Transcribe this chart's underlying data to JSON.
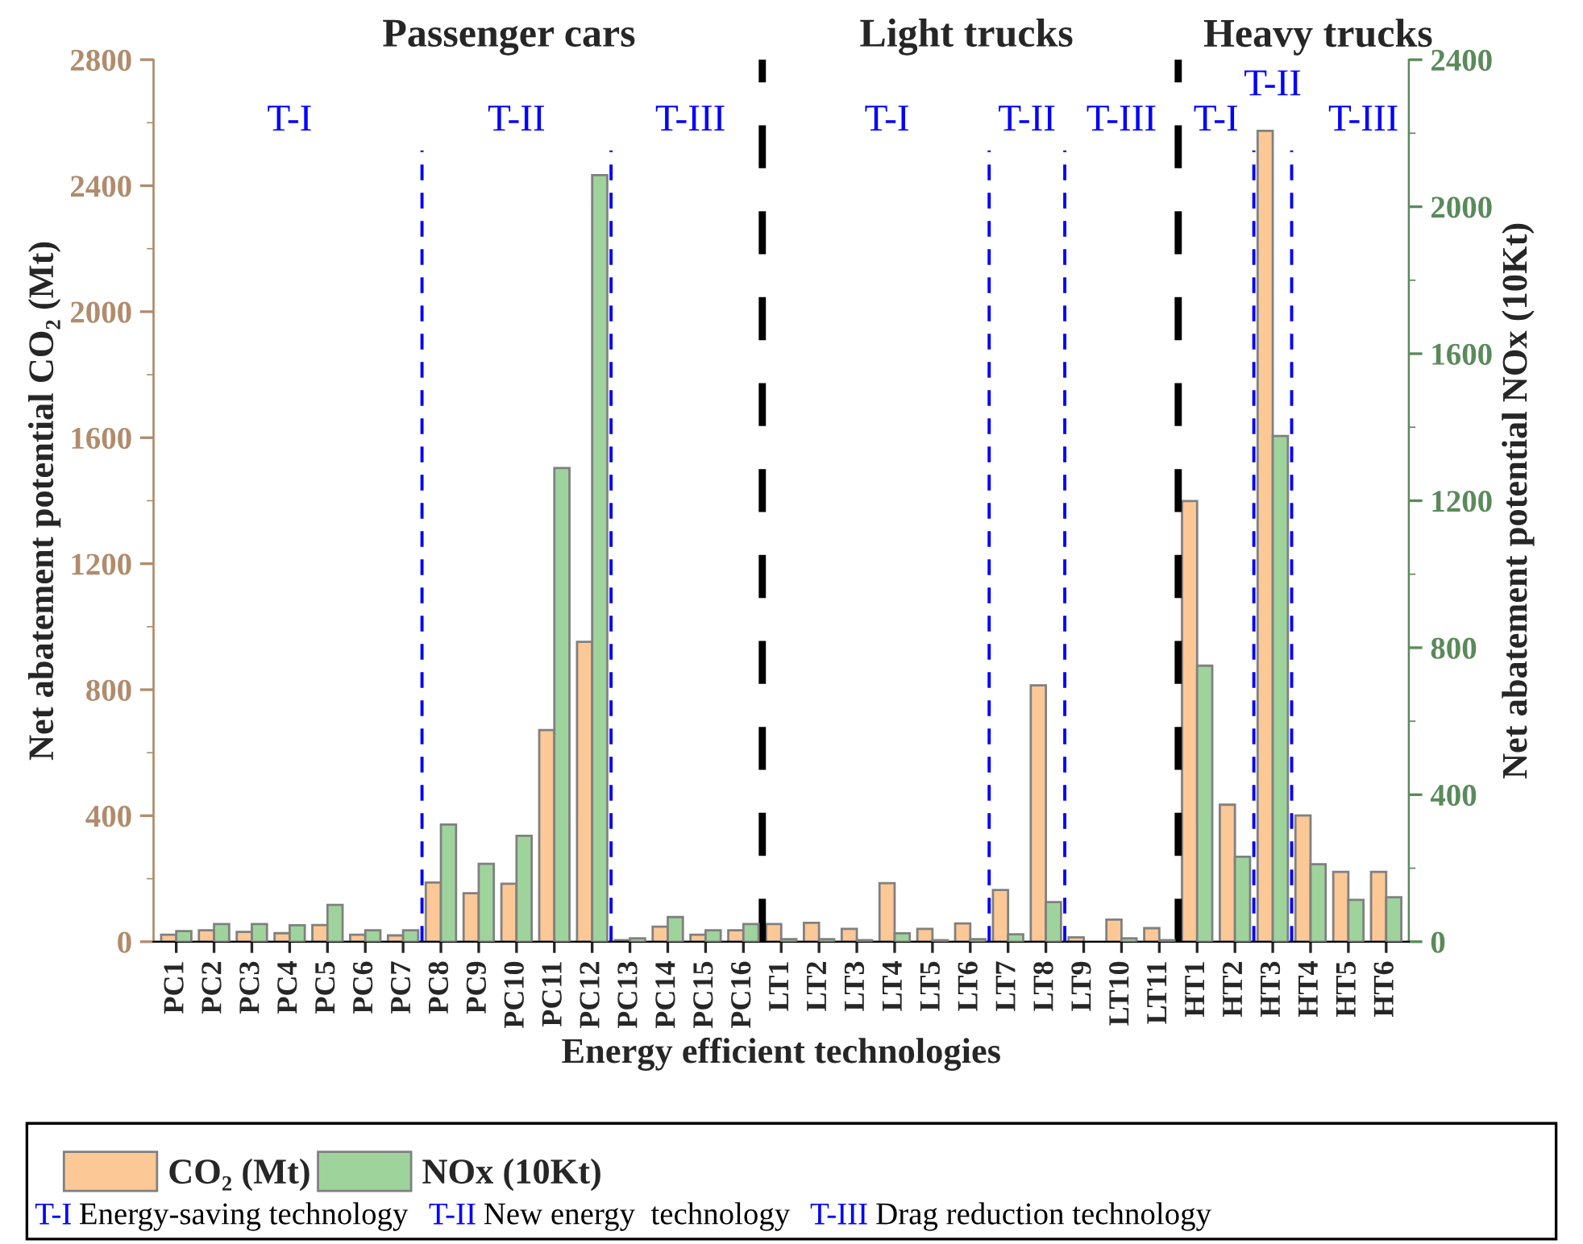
{
  "chart_data": {
    "type": "bar",
    "xlabel": "Energy efficient technologies",
    "ylabel": "Net abatement potential CO₂ (Mt)",
    "y2label": "Net abatement potential NOx (10Kt)",
    "categories": [
      "PC1",
      "PC2",
      "PC3",
      "PC4",
      "PC5",
      "PC6",
      "PC7",
      "PC8",
      "PC9",
      "PC10",
      "PC11",
      "PC12",
      "PC13",
      "PC14",
      "PC15",
      "PC16",
      "LT1",
      "LT2",
      "LT3",
      "LT4",
      "LT5",
      "LT6",
      "LT7",
      "LT8",
      "LT9",
      "LT10",
      "LT11",
      "HT1",
      "HT2",
      "HT3",
      "HT4",
      "HT5",
      "HT6"
    ],
    "series": [
      {
        "name": "CO₂ (Mt)",
        "color": "#fcc896",
        "values": [
          22,
          36,
          31,
          27,
          53,
          22,
          20,
          188,
          154,
          184,
          672,
          952,
          5,
          48,
          22,
          36,
          56,
          60,
          41,
          186,
          41,
          58,
          164,
          814,
          14,
          70,
          43,
          1399,
          435,
          2574,
          401,
          222,
          222
        ]
      },
      {
        "name": "NOx (10Kt)",
        "color": "#9ed49c",
        "axis": "y2",
        "values": [
          29,
          48,
          48,
          45,
          100,
          31,
          31,
          319,
          212,
          288,
          1289,
          2086,
          9,
          67,
          31,
          48,
          7,
          7,
          4,
          23,
          4,
          7,
          20,
          108,
          null,
          9,
          4,
          751,
          231,
          1376,
          211,
          114,
          121
        ]
      }
    ],
    "ylim": [
      0,
      2800
    ],
    "yticks": [
      0,
      400,
      800,
      1200,
      1600,
      2000,
      2400,
      2800
    ],
    "y2lim": [
      0,
      2400
    ],
    "y2ticks": [
      0,
      400,
      800,
      1200,
      1600,
      2000,
      2400
    ],
    "grid": false,
    "legend": "bottom",
    "annotations": [
      "Passenger cars",
      "Light trucks",
      "Heavy trucks",
      "T-I",
      "T-II",
      "T-III",
      "T-I",
      "T-II",
      "T-III",
      "T-I",
      "T-II",
      "T-III",
      "T-I Energy-saving technology",
      "T-II New energy  technology",
      "T-III Drag reduction technology"
    ]
  }
}
